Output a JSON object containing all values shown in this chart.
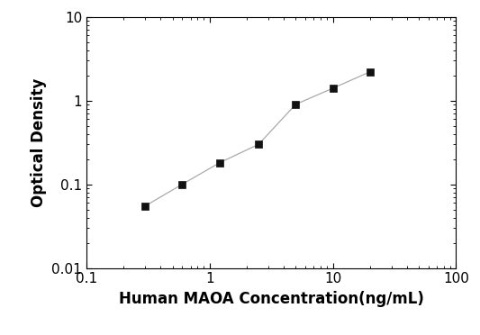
{
  "x": [
    0.3,
    0.6,
    1.2,
    2.5,
    5.0,
    10.0,
    20.0
  ],
  "y": [
    0.055,
    0.1,
    0.18,
    0.3,
    0.9,
    1.4,
    2.2
  ],
  "line_color": "#aaaaaa",
  "marker": "s",
  "marker_color": "#111111",
  "marker_size": 6,
  "xlabel": "Human MAOA Concentration(ng/mL)",
  "ylabel": "Optical Density",
  "xlim": [
    0.1,
    100
  ],
  "ylim": [
    0.01,
    10
  ],
  "xticks": [
    0.1,
    1,
    10,
    100
  ],
  "yticks": [
    0.01,
    0.1,
    1,
    10
  ],
  "xlabel_fontsize": 12,
  "ylabel_fontsize": 12,
  "tick_fontsize": 11,
  "background_color": "#ffffff",
  "figure_facecolor": "#ffffff"
}
